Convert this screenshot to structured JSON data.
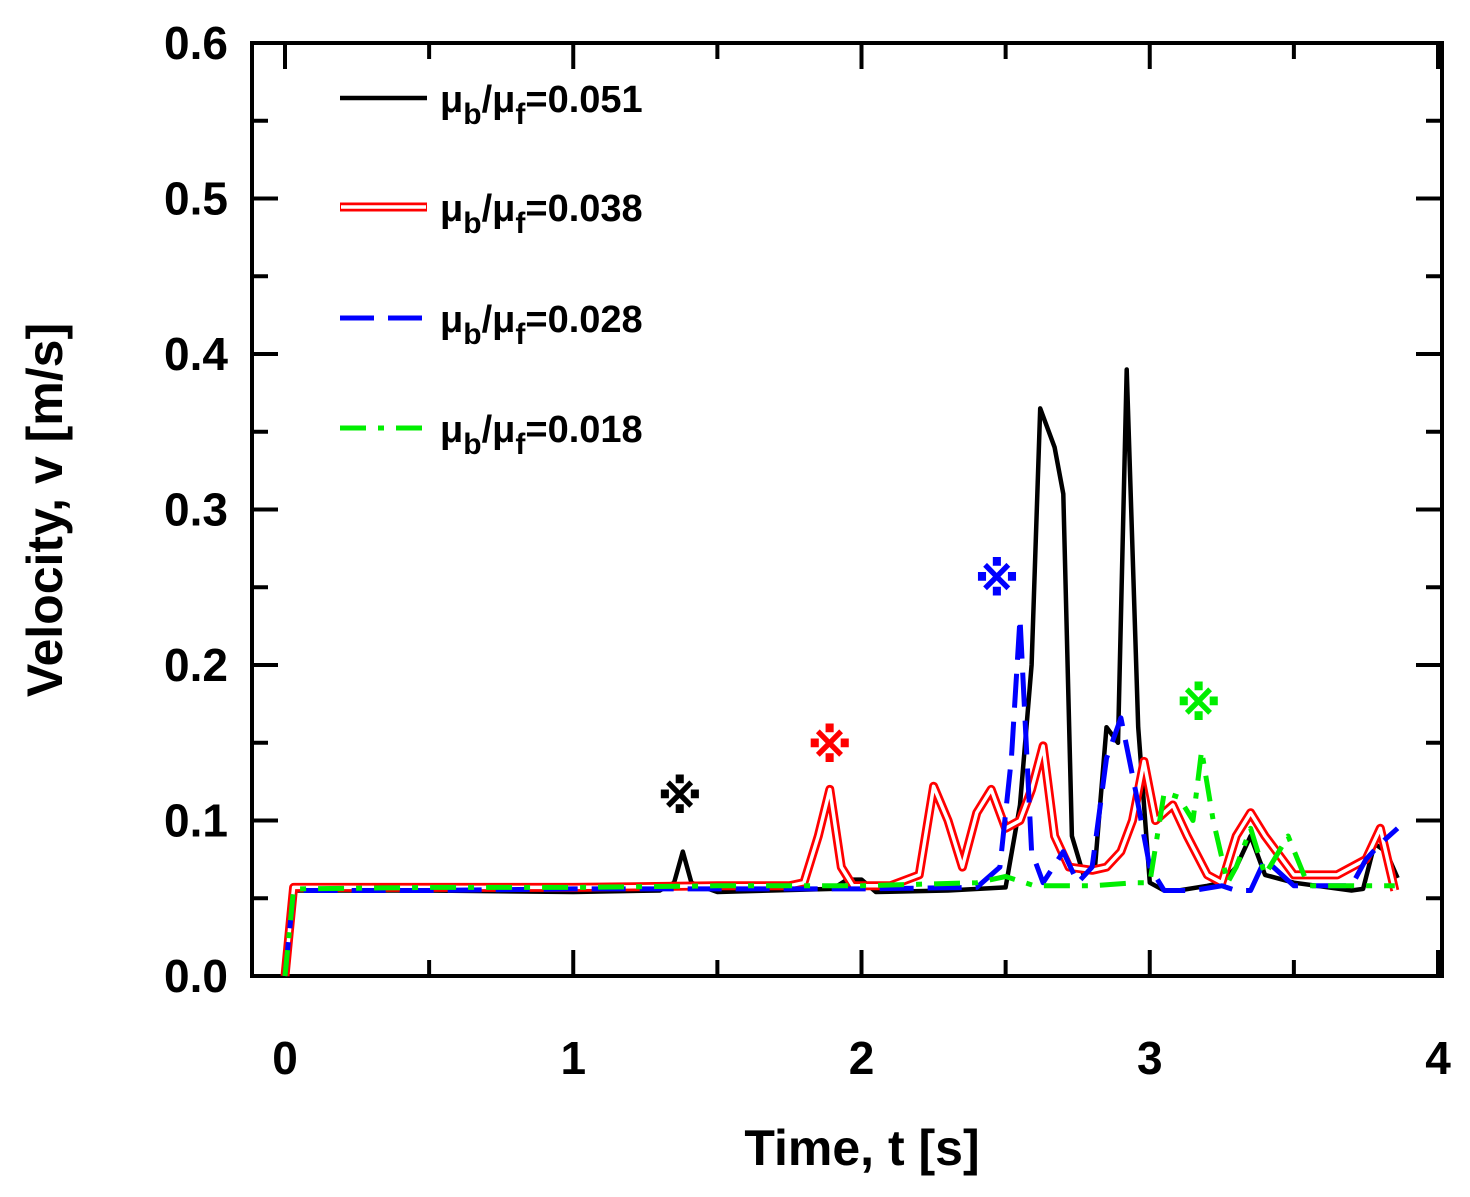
{
  "chart_data": {
    "type": "line",
    "xlabel": "Time, t [s]",
    "ylabel": "Velocity, v [m/s]",
    "xlim": [
      0,
      4
    ],
    "ylim": [
      0,
      0.6
    ],
    "xticks": [
      0,
      1,
      2,
      3,
      4
    ],
    "xtick_labels": [
      "0",
      "1",
      "2",
      "3",
      "4"
    ],
    "yticks": [
      0.0,
      0.1,
      0.2,
      0.3,
      0.4,
      0.5,
      0.6
    ],
    "ytick_labels": [
      "0.0",
      "0.1",
      "0.2",
      "0.3",
      "0.4",
      "0.5",
      "0.6"
    ],
    "grid": false,
    "legend_position": "top-left",
    "series": [
      {
        "name": "μb/μf=0.051",
        "legend_main": "μ",
        "legend_sub1": "b",
        "legend_mid": "/μ",
        "legend_sub2": "f",
        "legend_value": "=0.051",
        "color": "#000000",
        "style": "solid",
        "x": [
          0,
          0.03,
          0.5,
          1.0,
          1.3,
          1.35,
          1.38,
          1.41,
          1.5,
          1.9,
          1.95,
          2.0,
          2.05,
          2.3,
          2.5,
          2.55,
          2.59,
          2.62,
          2.67,
          2.7,
          2.73,
          2.77,
          2.81,
          2.85,
          2.89,
          2.92,
          2.96,
          3.0,
          3.05,
          3.1,
          3.2,
          3.25,
          3.3,
          3.35,
          3.4,
          3.5,
          3.7,
          3.74,
          3.78,
          3.82,
          3.86
        ],
        "y": [
          0,
          0.055,
          0.055,
          0.054,
          0.055,
          0.06,
          0.08,
          0.06,
          0.054,
          0.056,
          0.062,
          0.062,
          0.054,
          0.055,
          0.057,
          0.11,
          0.2,
          0.365,
          0.34,
          0.31,
          0.09,
          0.065,
          0.07,
          0.16,
          0.15,
          0.39,
          0.16,
          0.06,
          0.055,
          0.055,
          0.058,
          0.06,
          0.07,
          0.09,
          0.065,
          0.06,
          0.055,
          0.056,
          0.085,
          0.08,
          0.063
        ]
      },
      {
        "name": "μb/μf=0.038",
        "legend_main": "μ",
        "legend_sub1": "b",
        "legend_mid": "/μ",
        "legend_sub2": "f",
        "legend_value": "=0.038",
        "color": "#ff0000",
        "style": "double",
        "x": [
          0,
          0.03,
          0.5,
          1.0,
          1.5,
          1.75,
          1.8,
          1.85,
          1.89,
          1.93,
          1.97,
          2.1,
          2.2,
          2.25,
          2.3,
          2.35,
          2.4,
          2.45,
          2.5,
          2.55,
          2.59,
          2.63,
          2.67,
          2.72,
          2.8,
          2.85,
          2.9,
          2.94,
          2.98,
          3.02,
          3.08,
          3.13,
          3.2,
          3.25,
          3.3,
          3.35,
          3.4,
          3.5,
          3.65,
          3.75,
          3.8,
          3.85
        ],
        "y": [
          0,
          0.057,
          0.057,
          0.057,
          0.058,
          0.058,
          0.06,
          0.09,
          0.12,
          0.07,
          0.058,
          0.058,
          0.065,
          0.122,
          0.1,
          0.07,
          0.105,
          0.12,
          0.095,
          0.1,
          0.12,
          0.148,
          0.09,
          0.07,
          0.068,
          0.07,
          0.08,
          0.1,
          0.138,
          0.1,
          0.11,
          0.09,
          0.065,
          0.06,
          0.09,
          0.105,
          0.09,
          0.065,
          0.065,
          0.075,
          0.095,
          0.055
        ]
      },
      {
        "name": "μb/μf=0.028",
        "legend_main": "μ",
        "legend_sub1": "b",
        "legend_mid": "/μ",
        "legend_sub2": "f",
        "legend_value": "=0.028",
        "color": "#0000ff",
        "style": "dashed",
        "x": [
          0,
          0.03,
          0.5,
          1.0,
          1.5,
          2.0,
          2.4,
          2.48,
          2.52,
          2.55,
          2.59,
          2.63,
          2.7,
          2.75,
          2.8,
          2.85,
          2.9,
          2.95,
          3.0,
          3.05,
          3.15,
          3.25,
          3.3,
          3.35,
          3.4,
          3.5,
          3.6,
          3.7,
          3.75,
          3.8,
          3.86
        ],
        "y": [
          0,
          0.055,
          0.055,
          0.056,
          0.056,
          0.056,
          0.057,
          0.07,
          0.14,
          0.23,
          0.08,
          0.06,
          0.08,
          0.06,
          0.07,
          0.14,
          0.166,
          0.12,
          0.07,
          0.055,
          0.055,
          0.058,
          0.055,
          0.055,
          0.075,
          0.058,
          0.058,
          0.058,
          0.075,
          0.085,
          0.095
        ]
      },
      {
        "name": "μb/μf=0.018",
        "legend_main": "μ",
        "legend_sub1": "b",
        "legend_mid": "/μ",
        "legend_sub2": "f",
        "legend_value": "=0.018",
        "color": "#00ee00",
        "style": "dashdot",
        "x": [
          0,
          0.03,
          0.5,
          1.0,
          1.5,
          2.0,
          2.4,
          2.5,
          2.6,
          2.8,
          2.95,
          3.0,
          3.05,
          3.1,
          3.15,
          3.18,
          3.22,
          3.27,
          3.3,
          3.35,
          3.4,
          3.48,
          3.55,
          3.7,
          3.78,
          3.85
        ],
        "y": [
          0,
          0.056,
          0.057,
          0.057,
          0.058,
          0.058,
          0.06,
          0.064,
          0.058,
          0.058,
          0.06,
          0.06,
          0.118,
          0.115,
          0.1,
          0.145,
          0.1,
          0.06,
          0.07,
          0.095,
          0.065,
          0.09,
          0.058,
          0.058,
          0.058,
          0.058
        ]
      }
    ],
    "annotations": [
      {
        "text": "※",
        "color": "#000000",
        "x": 1.37,
        "y": 0.115
      },
      {
        "text": "※",
        "color": "#ff0000",
        "x": 1.89,
        "y": 0.148
      },
      {
        "text": "※",
        "color": "#0000ff",
        "x": 2.47,
        "y": 0.255
      },
      {
        "text": "※",
        "color": "#00ee00",
        "x": 3.17,
        "y": 0.175
      }
    ]
  }
}
